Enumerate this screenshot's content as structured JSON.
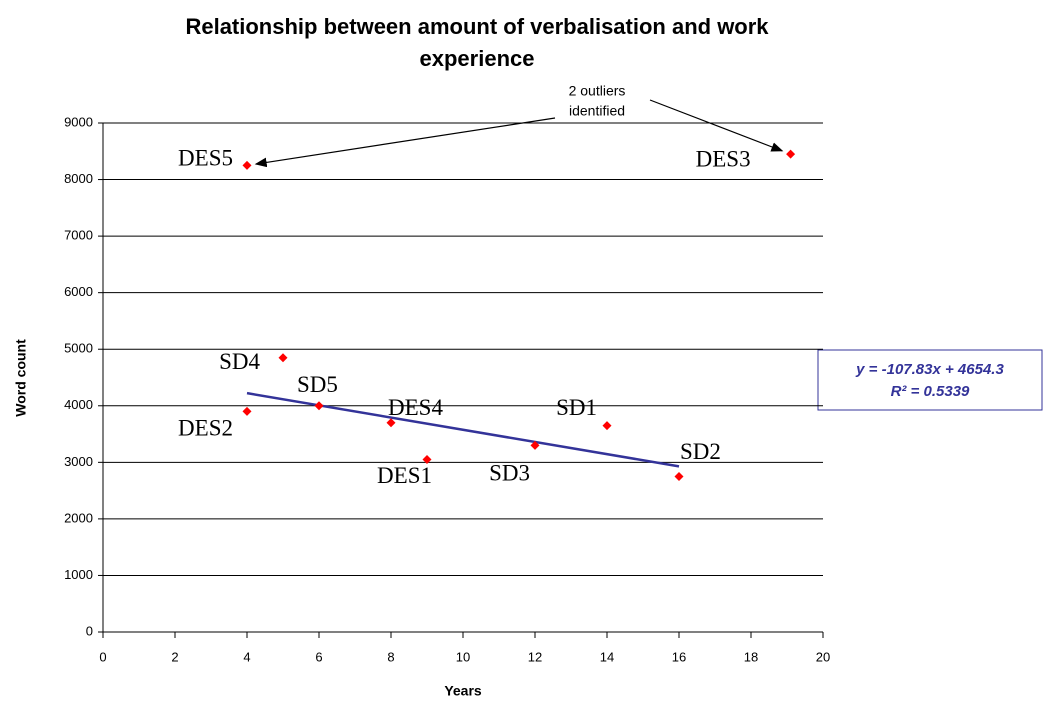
{
  "chart_data": {
    "type": "scatter",
    "title": [
      "Relationship between amount of verbalisation and work",
      "experience"
    ],
    "x_label": "Years",
    "y_label": "Word count",
    "x": [
      4,
      19.1,
      5,
      6,
      4,
      8,
      9,
      12,
      14,
      16
    ],
    "values": [
      8250,
      8450,
      4850,
      4000,
      3900,
      3700,
      3050,
      3300,
      3650,
      2750
    ],
    "point_labels": [
      "DES5",
      "DES3",
      "SD4",
      "SD5",
      "DES2",
      "DES4",
      "DES1",
      "SD3",
      "SD1",
      "SD2"
    ],
    "color": "#ff0000",
    "xlim": [
      0,
      20
    ],
    "xticks": [
      0,
      2,
      4,
      6,
      8,
      10,
      12,
      14,
      16,
      18,
      20
    ],
    "ylim": [
      0,
      9000
    ],
    "yticks": [
      0,
      1000,
      2000,
      3000,
      4000,
      5000,
      6000,
      7000,
      8000,
      9000
    ],
    "grid": true,
    "trendline": {
      "slope": -107.83,
      "intercept": 4654.3,
      "x_range": [
        4,
        16
      ],
      "color": "#333399",
      "equation_label": "y = -107.83x + 4654.3",
      "r_squared_label": "R² = 0.5339"
    },
    "annotation": {
      "text": [
        "2 outliers",
        "identified"
      ],
      "points": [
        0,
        1
      ]
    }
  }
}
